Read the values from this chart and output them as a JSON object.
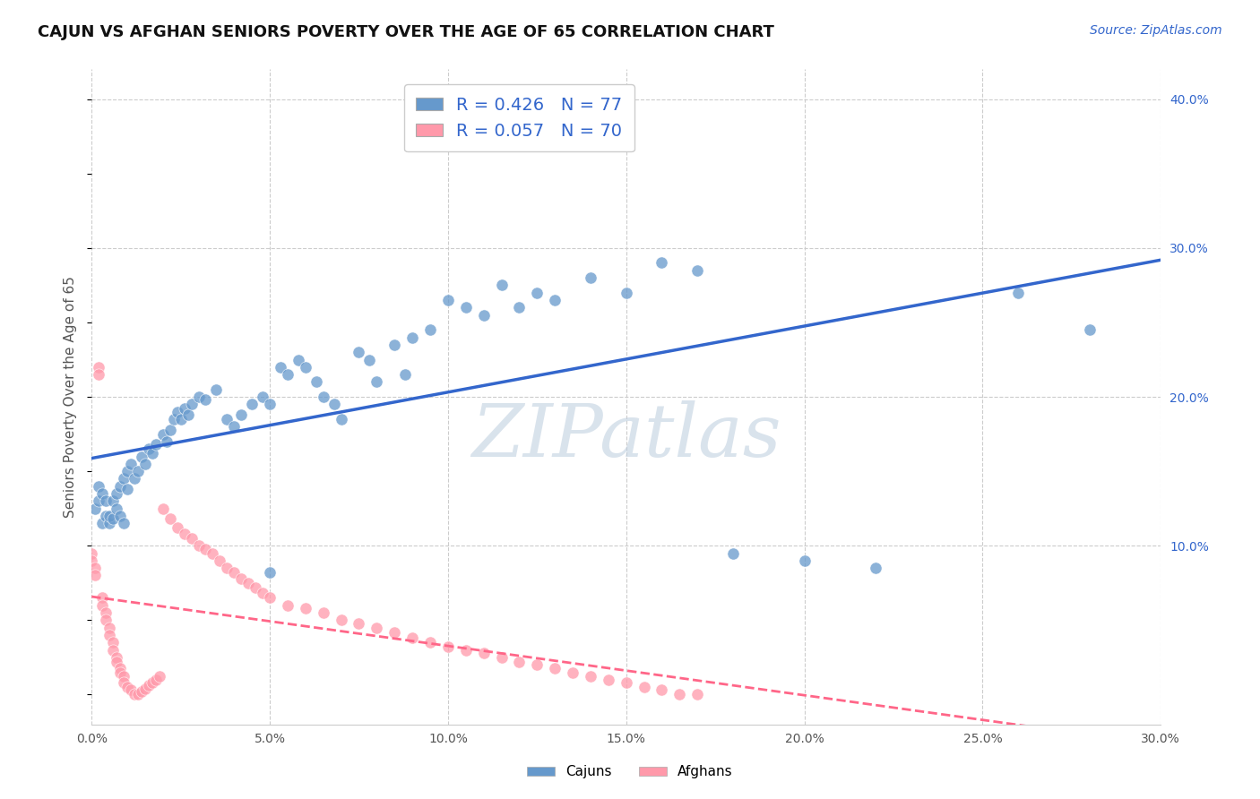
{
  "title": "CAJUN VS AFGHAN SENIORS POVERTY OVER THE AGE OF 65 CORRELATION CHART",
  "source": "Source: ZipAtlas.com",
  "ylabel": "Seniors Poverty Over the Age of 65",
  "xlim": [
    0.0,
    0.3
  ],
  "ylim": [
    -0.02,
    0.42
  ],
  "x_ticks": [
    0.0,
    0.05,
    0.1,
    0.15,
    0.2,
    0.25,
    0.3
  ],
  "y_ticks_right": [
    0.1,
    0.2,
    0.3,
    0.4
  ],
  "cajun_color": "#6699CC",
  "afghan_color": "#FF99AA",
  "cajun_line_color": "#3366CC",
  "afghan_line_color": "#FF6688",
  "cajun_R": 0.426,
  "cajun_N": 77,
  "afghan_R": 0.057,
  "afghan_N": 70,
  "background_color": "#FFFFFF",
  "watermark": "ZIPatlas",
  "watermark_color": "#BBCCDD",
  "cajun_x": [
    0.001,
    0.002,
    0.002,
    0.003,
    0.003,
    0.004,
    0.004,
    0.005,
    0.005,
    0.006,
    0.006,
    0.007,
    0.007,
    0.008,
    0.008,
    0.009,
    0.009,
    0.01,
    0.01,
    0.011,
    0.012,
    0.013,
    0.014,
    0.015,
    0.016,
    0.017,
    0.018,
    0.02,
    0.021,
    0.022,
    0.023,
    0.024,
    0.025,
    0.026,
    0.027,
    0.028,
    0.03,
    0.032,
    0.035,
    0.038,
    0.04,
    0.042,
    0.045,
    0.048,
    0.05,
    0.053,
    0.055,
    0.058,
    0.06,
    0.063,
    0.065,
    0.068,
    0.07,
    0.075,
    0.078,
    0.08,
    0.085,
    0.088,
    0.09,
    0.095,
    0.1,
    0.105,
    0.11,
    0.115,
    0.12,
    0.125,
    0.13,
    0.14,
    0.15,
    0.16,
    0.17,
    0.18,
    0.2,
    0.22,
    0.26,
    0.28,
    0.05
  ],
  "cajun_y": [
    0.125,
    0.13,
    0.14,
    0.135,
    0.115,
    0.12,
    0.13,
    0.115,
    0.12,
    0.13,
    0.118,
    0.135,
    0.125,
    0.14,
    0.12,
    0.145,
    0.115,
    0.15,
    0.138,
    0.155,
    0.145,
    0.15,
    0.16,
    0.155,
    0.165,
    0.162,
    0.168,
    0.175,
    0.17,
    0.178,
    0.185,
    0.19,
    0.185,
    0.192,
    0.188,
    0.195,
    0.2,
    0.198,
    0.205,
    0.185,
    0.18,
    0.188,
    0.195,
    0.2,
    0.195,
    0.22,
    0.215,
    0.225,
    0.22,
    0.21,
    0.2,
    0.195,
    0.185,
    0.23,
    0.225,
    0.21,
    0.235,
    0.215,
    0.24,
    0.245,
    0.265,
    0.26,
    0.255,
    0.275,
    0.26,
    0.27,
    0.265,
    0.28,
    0.27,
    0.29,
    0.285,
    0.095,
    0.09,
    0.085,
    0.27,
    0.245,
    0.082
  ],
  "afghan_x": [
    0.0,
    0.0,
    0.001,
    0.001,
    0.002,
    0.002,
    0.003,
    0.003,
    0.004,
    0.004,
    0.005,
    0.005,
    0.006,
    0.006,
    0.007,
    0.007,
    0.008,
    0.008,
    0.009,
    0.009,
    0.01,
    0.011,
    0.012,
    0.013,
    0.014,
    0.015,
    0.016,
    0.017,
    0.018,
    0.019,
    0.02,
    0.022,
    0.024,
    0.026,
    0.028,
    0.03,
    0.032,
    0.034,
    0.036,
    0.038,
    0.04,
    0.042,
    0.044,
    0.046,
    0.048,
    0.05,
    0.055,
    0.06,
    0.065,
    0.07,
    0.075,
    0.08,
    0.085,
    0.09,
    0.095,
    0.1,
    0.105,
    0.11,
    0.115,
    0.12,
    0.125,
    0.13,
    0.135,
    0.14,
    0.145,
    0.15,
    0.155,
    0.16,
    0.165,
    0.17
  ],
  "afghan_y": [
    0.095,
    0.09,
    0.085,
    0.08,
    0.22,
    0.215,
    0.065,
    0.06,
    0.055,
    0.05,
    0.045,
    0.04,
    0.035,
    0.03,
    0.025,
    0.022,
    0.018,
    0.015,
    0.012,
    0.008,
    0.005,
    0.003,
    0.0,
    0.0,
    0.002,
    0.004,
    0.006,
    0.008,
    0.01,
    0.012,
    0.125,
    0.118,
    0.112,
    0.108,
    0.105,
    0.1,
    0.098,
    0.095,
    0.09,
    0.085,
    0.082,
    0.078,
    0.075,
    0.072,
    0.068,
    0.065,
    0.06,
    0.058,
    0.055,
    0.05,
    0.048,
    0.045,
    0.042,
    0.038,
    0.035,
    0.032,
    0.03,
    0.028,
    0.025,
    0.022,
    0.02,
    0.018,
    0.015,
    0.012,
    0.01,
    0.008,
    0.005,
    0.003,
    0.0,
    0.0
  ]
}
